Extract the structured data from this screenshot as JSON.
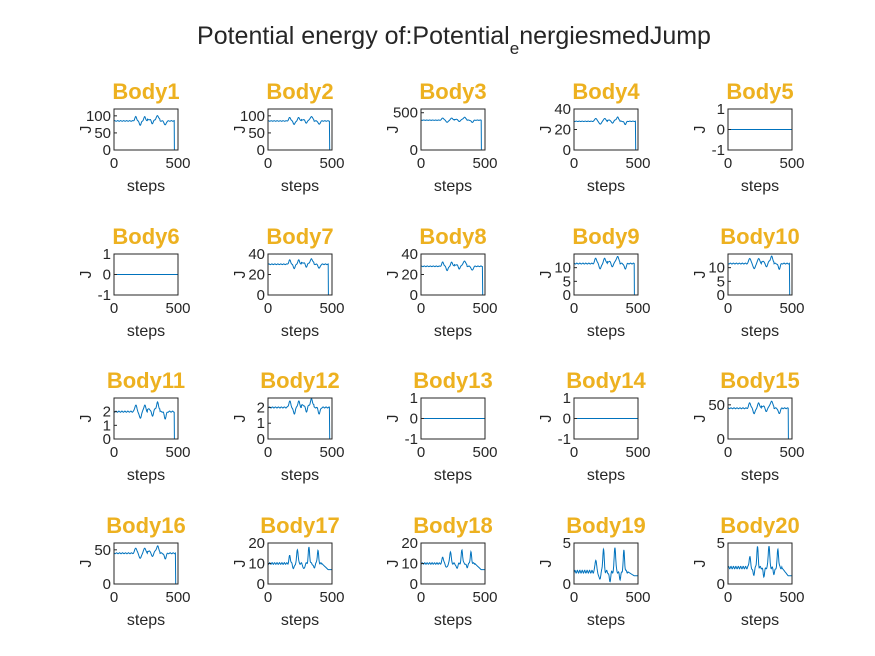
{
  "figure": {
    "title_main": "Potential energy of:Potential",
    "title_sub": "e",
    "title_rest": "nergiesmedJump",
    "title_color": "#EDB120",
    "line_color": "#0072BD"
  },
  "chart_data": [
    {
      "type": "line",
      "title": "Body1",
      "xlabel": "steps",
      "ylabel": "J",
      "xlim": [
        0,
        500
      ],
      "ylim": [
        0,
        120
      ],
      "yticks": [
        0,
        50,
        100
      ],
      "ytick_labels": [
        "0",
        "50",
        "100"
      ],
      "xticks": [
        0,
        500
      ],
      "xtick_labels": [
        "0",
        "500"
      ],
      "baseline": 85,
      "drop_x": 470,
      "end_value": 0,
      "profile": "wiggle",
      "amp": 12
    },
    {
      "type": "line",
      "title": "Body2",
      "xlabel": "steps",
      "ylabel": "J",
      "xlim": [
        0,
        500
      ],
      "ylim": [
        0,
        120
      ],
      "yticks": [
        0,
        50,
        100
      ],
      "ytick_labels": [
        "0",
        "50",
        "100"
      ],
      "xticks": [
        0,
        500
      ],
      "xtick_labels": [
        "0",
        "500"
      ],
      "baseline": 85,
      "drop_x": 480,
      "end_value": 0,
      "profile": "wiggle",
      "amp": 10
    },
    {
      "type": "line",
      "title": "Body3",
      "xlabel": "steps",
      "ylabel": "J",
      "xlim": [
        0,
        500
      ],
      "ylim": [
        0,
        550
      ],
      "yticks": [
        0,
        500
      ],
      "ytick_labels": [
        "0",
        "500"
      ],
      "xticks": [
        0,
        500
      ],
      "xtick_labels": [
        "0",
        "500"
      ],
      "baseline": 400,
      "drop_x": 470,
      "end_value": 0,
      "profile": "wiggle",
      "amp": 30
    },
    {
      "type": "line",
      "title": "Body4",
      "xlabel": "steps",
      "ylabel": "J",
      "xlim": [
        0,
        500
      ],
      "ylim": [
        0,
        40
      ],
      "yticks": [
        0,
        20,
        40
      ],
      "ytick_labels": [
        "0",
        "20",
        "40"
      ],
      "xticks": [
        0,
        500
      ],
      "xtick_labels": [
        "0",
        "500"
      ],
      "baseline": 28,
      "drop_x": 480,
      "end_value": 0,
      "profile": "wiggle",
      "amp": 3
    },
    {
      "type": "line",
      "title": "Body5",
      "xlabel": "steps",
      "ylabel": "J",
      "xlim": [
        0,
        500
      ],
      "ylim": [
        -1,
        1
      ],
      "yticks": [
        -1,
        0,
        1
      ],
      "ytick_labels": [
        "-1",
        "0",
        "1"
      ],
      "xticks": [
        0,
        500
      ],
      "xtick_labels": [
        "0",
        "500"
      ],
      "baseline": 0,
      "drop_x": null,
      "end_value": 0,
      "profile": "flat",
      "amp": 0
    },
    {
      "type": "line",
      "title": "Body6",
      "xlabel": "steps",
      "ylabel": "J",
      "xlim": [
        0,
        500
      ],
      "ylim": [
        -1,
        1
      ],
      "yticks": [
        -1,
        0,
        1
      ],
      "ytick_labels": [
        "-1",
        "0",
        "1"
      ],
      "xticks": [
        0,
        500
      ],
      "xtick_labels": [
        "0",
        "500"
      ],
      "baseline": 0,
      "drop_x": null,
      "end_value": 0,
      "profile": "flat",
      "amp": 0
    },
    {
      "type": "line",
      "title": "Body7",
      "xlabel": "steps",
      "ylabel": "J",
      "xlim": [
        0,
        500
      ],
      "ylim": [
        0,
        40
      ],
      "yticks": [
        0,
        20,
        40
      ],
      "ytick_labels": [
        "0",
        "20",
        "40"
      ],
      "xticks": [
        0,
        500
      ],
      "xtick_labels": [
        "0",
        "500"
      ],
      "baseline": 30,
      "drop_x": 470,
      "end_value": 0,
      "profile": "wiggle",
      "amp": 4
    },
    {
      "type": "line",
      "title": "Body8",
      "xlabel": "steps",
      "ylabel": "J",
      "xlim": [
        0,
        500
      ],
      "ylim": [
        0,
        40
      ],
      "yticks": [
        0,
        20,
        40
      ],
      "ytick_labels": [
        "0",
        "20",
        "40"
      ],
      "xticks": [
        0,
        500
      ],
      "xtick_labels": [
        "0",
        "500"
      ],
      "baseline": 28,
      "drop_x": 480,
      "end_value": 0,
      "profile": "wiggle",
      "amp": 4
    },
    {
      "type": "line",
      "title": "Body9",
      "xlabel": "steps",
      "ylabel": "J",
      "xlim": [
        0,
        500
      ],
      "ylim": [
        0,
        15
      ],
      "yticks": [
        0,
        5,
        10
      ],
      "ytick_labels": [
        "0",
        "5",
        "10"
      ],
      "xticks": [
        0,
        500
      ],
      "xtick_labels": [
        "0",
        "500"
      ],
      "baseline": 11.5,
      "drop_x": 470,
      "end_value": 0,
      "profile": "wiggle",
      "amp": 2
    },
    {
      "type": "line",
      "title": "Body10",
      "xlabel": "steps",
      "ylabel": "J",
      "xlim": [
        0,
        500
      ],
      "ylim": [
        0,
        15
      ],
      "yticks": [
        0,
        5,
        10
      ],
      "ytick_labels": [
        "0",
        "5",
        "10"
      ],
      "xticks": [
        0,
        500
      ],
      "xtick_labels": [
        "0",
        "500"
      ],
      "baseline": 11.5,
      "drop_x": 480,
      "end_value": 0,
      "profile": "wiggle",
      "amp": 2
    },
    {
      "type": "line",
      "title": "Body11",
      "xlabel": "steps",
      "ylabel": "J",
      "xlim": [
        0,
        500
      ],
      "ylim": [
        0,
        3
      ],
      "yticks": [
        0,
        1,
        2
      ],
      "ytick_labels": [
        "0",
        "1",
        "2"
      ],
      "xticks": [
        0,
        500
      ],
      "xtick_labels": [
        "0",
        "500"
      ],
      "baseline": 2,
      "drop_x": 470,
      "end_value": 0,
      "profile": "wiggle",
      "amp": 0.5
    },
    {
      "type": "line",
      "title": "Body12",
      "xlabel": "steps",
      "ylabel": "J",
      "xlim": [
        0,
        500
      ],
      "ylim": [
        0,
        2.6
      ],
      "yticks": [
        0,
        1,
        2
      ],
      "ytick_labels": [
        "0",
        "1",
        "2"
      ],
      "xticks": [
        0,
        500
      ],
      "xtick_labels": [
        "0",
        "500"
      ],
      "baseline": 2,
      "drop_x": 480,
      "end_value": 0,
      "profile": "wiggle",
      "amp": 0.4
    },
    {
      "type": "line",
      "title": "Body13",
      "xlabel": "steps",
      "ylabel": "J",
      "xlim": [
        0,
        500
      ],
      "ylim": [
        -1,
        1
      ],
      "yticks": [
        -1,
        0,
        1
      ],
      "ytick_labels": [
        "-1",
        "0",
        "1"
      ],
      "xticks": [
        0,
        500
      ],
      "xtick_labels": [
        "0",
        "500"
      ],
      "baseline": 0,
      "drop_x": null,
      "end_value": 0,
      "profile": "flat",
      "amp": 0
    },
    {
      "type": "line",
      "title": "Body14",
      "xlabel": "steps",
      "ylabel": "J",
      "xlim": [
        0,
        500
      ],
      "ylim": [
        -1,
        1
      ],
      "yticks": [
        -1,
        0,
        1
      ],
      "ytick_labels": [
        "-1",
        "0",
        "1"
      ],
      "xticks": [
        0,
        500
      ],
      "xtick_labels": [
        "0",
        "500"
      ],
      "baseline": 0,
      "drop_x": null,
      "end_value": 0,
      "profile": "flat",
      "amp": 0
    },
    {
      "type": "line",
      "title": "Body15",
      "xlabel": "steps",
      "ylabel": "J",
      "xlim": [
        0,
        500
      ],
      "ylim": [
        0,
        60
      ],
      "yticks": [
        0,
        50
      ],
      "ytick_labels": [
        "0",
        "50"
      ],
      "xticks": [
        0,
        500
      ],
      "xtick_labels": [
        "0",
        "500"
      ],
      "baseline": 45,
      "drop_x": 470,
      "end_value": 0,
      "profile": "wiggle",
      "amp": 8
    },
    {
      "type": "line",
      "title": "Body16",
      "xlabel": "steps",
      "ylabel": "J",
      "xlim": [
        0,
        500
      ],
      "ylim": [
        0,
        60
      ],
      "yticks": [
        0,
        50
      ],
      "ytick_labels": [
        "0",
        "50"
      ],
      "xticks": [
        0,
        500
      ],
      "xtick_labels": [
        "0",
        "500"
      ],
      "baseline": 45,
      "drop_x": 480,
      "end_value": 0,
      "profile": "wiggle",
      "amp": 8
    },
    {
      "type": "line",
      "title": "Body17",
      "xlabel": "steps",
      "ylabel": "J",
      "xlim": [
        0,
        500
      ],
      "ylim": [
        0,
        20
      ],
      "yticks": [
        0,
        10,
        20
      ],
      "ytick_labels": [
        "0",
        "10",
        "20"
      ],
      "xticks": [
        0,
        500
      ],
      "xtick_labels": [
        "0",
        "500"
      ],
      "baseline": 10,
      "drop_x": null,
      "end_value": 7,
      "profile": "spikes",
      "amp": 7
    },
    {
      "type": "line",
      "title": "Body18",
      "xlabel": "steps",
      "ylabel": "J",
      "xlim": [
        0,
        500
      ],
      "ylim": [
        0,
        20
      ],
      "yticks": [
        0,
        10,
        20
      ],
      "ytick_labels": [
        "0",
        "10",
        "20"
      ],
      "xticks": [
        0,
        500
      ],
      "xtick_labels": [
        "0",
        "500"
      ],
      "baseline": 10,
      "drop_x": null,
      "end_value": 7,
      "profile": "spikes",
      "amp": 6
    },
    {
      "type": "line",
      "title": "Body19",
      "xlabel": "steps",
      "ylabel": "J",
      "xlim": [
        0,
        500
      ],
      "ylim": [
        0,
        5
      ],
      "yticks": [
        0,
        5
      ],
      "ytick_labels": [
        "0",
        "5"
      ],
      "xticks": [
        0,
        500
      ],
      "xtick_labels": [
        "0",
        "500"
      ],
      "baseline": 1.5,
      "drop_x": null,
      "end_value": 1,
      "profile": "spikes",
      "amp": 2.8
    },
    {
      "type": "line",
      "title": "Body20",
      "xlabel": "steps",
      "ylabel": "J",
      "xlim": [
        0,
        500
      ],
      "ylim": [
        0,
        5
      ],
      "yticks": [
        0,
        5
      ],
      "ytick_labels": [
        "0",
        "5"
      ],
      "xticks": [
        0,
        500
      ],
      "xtick_labels": [
        "0",
        "500"
      ],
      "baseline": 2,
      "drop_x": null,
      "end_value": 1,
      "profile": "spikes",
      "amp": 2.5
    }
  ]
}
